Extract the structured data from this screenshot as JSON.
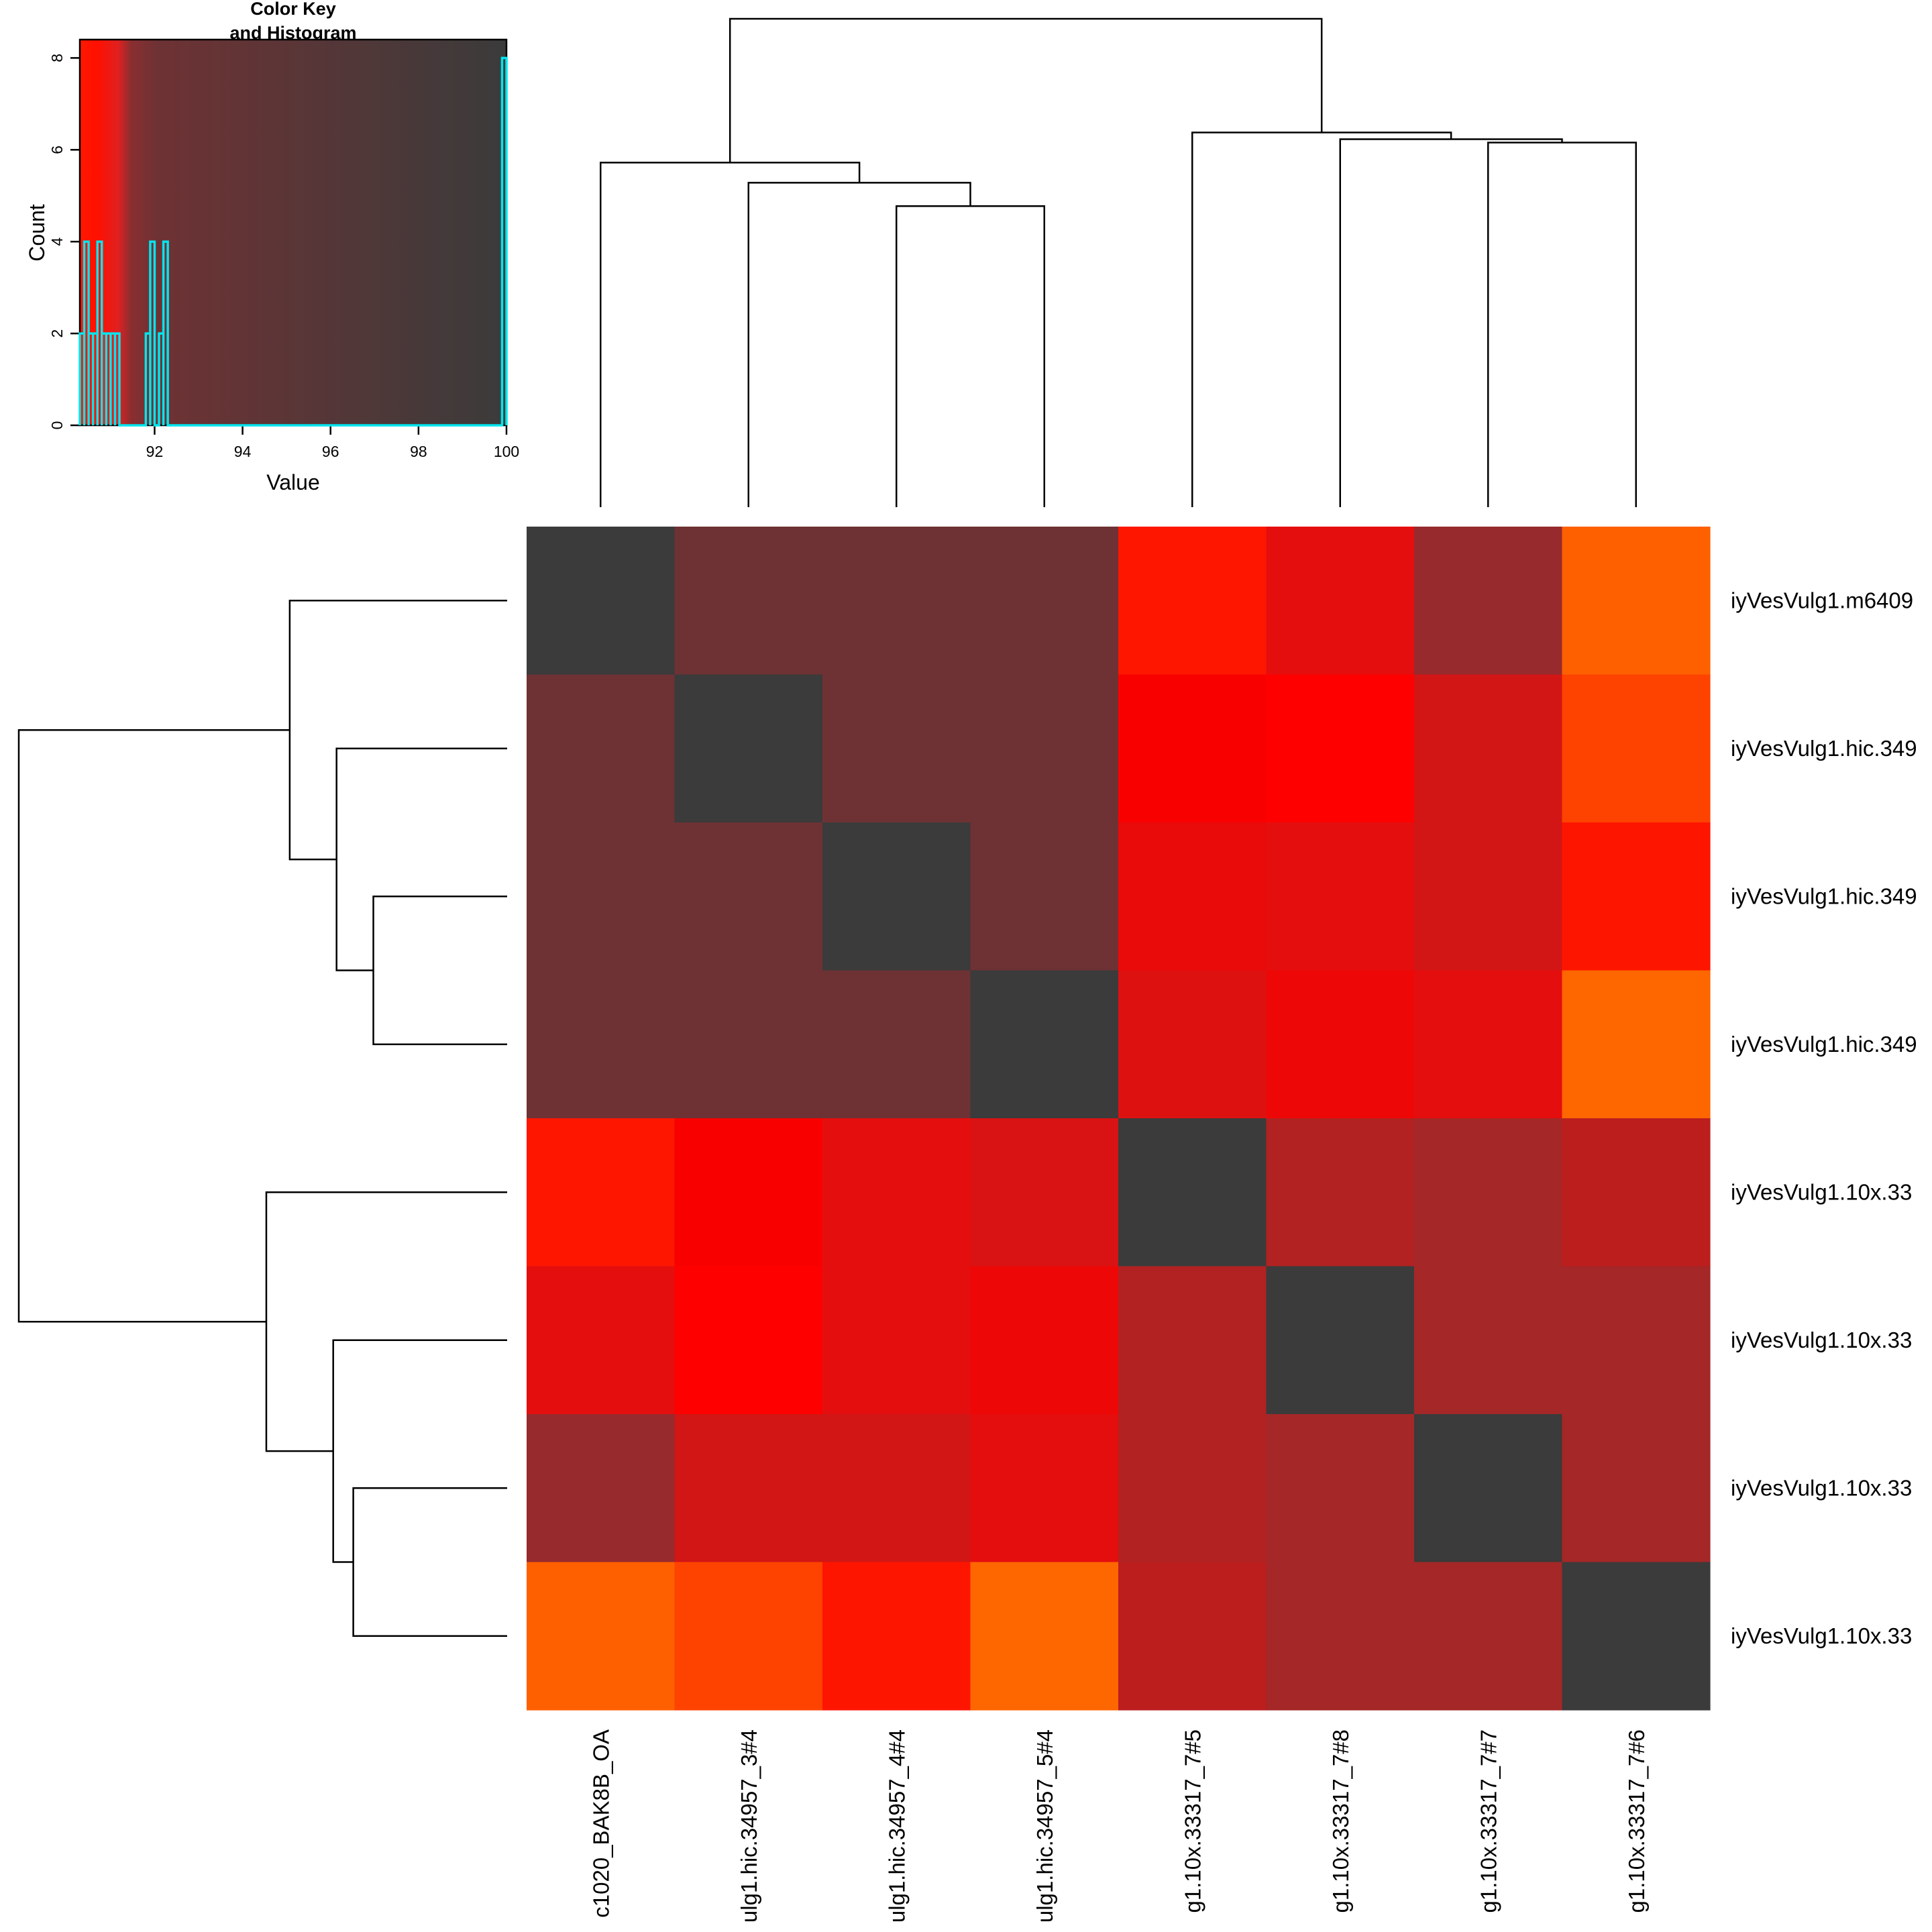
{
  "color_key": {
    "title_line1": "Color Key",
    "title_line2": "and Histogram",
    "xlabel": "Value",
    "ylabel": "Count",
    "x_ticks": [
      "92",
      "94",
      "96",
      "98",
      "100"
    ],
    "y_ticks": [
      "0",
      "2",
      "4",
      "6",
      "8"
    ],
    "xlim": [
      90.3,
      100.0
    ],
    "ylim": [
      0,
      8.4
    ],
    "colors": {
      "low": "#ff0000",
      "mid": "#6e3234",
      "high": "#3b3b3b",
      "histogram_line": "#00e5ee"
    }
  },
  "chart_data": {
    "type": "heatmap",
    "row_labels": [
      "iyVesVulg1.m6409",
      "iyVesVulg1.hic.349",
      "iyVesVulg1.hic.349",
      "iyVesVulg1.hic.349",
      "iyVesVulg1.10x.33",
      "iyVesVulg1.10x.33",
      "iyVesVulg1.10x.33",
      "iyVesVulg1.10x.33"
    ],
    "col_labels": [
      "c1020_BAK8B_OA",
      "ulg1.hic.34957_3#4",
      "ulg1.hic.34957_4#4",
      "ulg1.hic.34957_5#4",
      "g1.10x.33317_7#5",
      "g1.10x.33317_7#8",
      "g1.10x.33317_7#7",
      "g1.10x.33317_7#6"
    ],
    "cell_colors": [
      [
        "#3b3b3b",
        "#6e3234",
        "#6e3234",
        "#6e3234",
        "#fe1600",
        "#e50e0e",
        "#962a2d",
        "#fe6000"
      ],
      [
        "#6e3234",
        "#3b3b3b",
        "#6e3234",
        "#6e3234",
        "#f90000",
        "#fe0000",
        "#d21616",
        "#fe4300"
      ],
      [
        "#6e3234",
        "#6e3234",
        "#3b3b3b",
        "#6e3234",
        "#e90a0a",
        "#e50e0e",
        "#d21616",
        "#fe1500"
      ],
      [
        "#6e3234",
        "#6e3234",
        "#6e3234",
        "#3b3b3b",
        "#de1111",
        "#ee0707",
        "#e50e0e",
        "#fe6600"
      ],
      [
        "#fe1600",
        "#f90000",
        "#e50e0e",
        "#d91313",
        "#3b3b3b",
        "#b22222",
        "#a52727",
        "#bc1e1e"
      ],
      [
        "#e50e0e",
        "#fe0000",
        "#e50e0e",
        "#ee0707",
        "#b22222",
        "#3b3b3b",
        "#a52727",
        "#a52727"
      ],
      [
        "#962a2d",
        "#d21616",
        "#d21616",
        "#e50e0e",
        "#b22222",
        "#a52727",
        "#3b3b3b",
        "#a52727"
      ],
      [
        "#fe6000",
        "#fe4300",
        "#fe1500",
        "#fe6600",
        "#bc1e1e",
        "#a52727",
        "#a52727",
        "#3b3b3b"
      ]
    ],
    "histogram": {
      "comment_free": true,
      "x": [
        90.35,
        90.45,
        90.55,
        90.65,
        90.75,
        90.85,
        90.95,
        91.05,
        91.15,
        91.85,
        91.95,
        92.15,
        92.25,
        99.95
      ],
      "counts": [
        2,
        4,
        2,
        2,
        4,
        2,
        2,
        2,
        2,
        2,
        4,
        2,
        4,
        8
      ]
    },
    "row_dendrogram": {
      "merges": [
        {
          "a": 2,
          "b": 3,
          "height": 2.0
        },
        {
          "a": 6,
          "b": 7,
          "height": 2.3
        },
        {
          "a": 1,
          "b": "2-3",
          "height": 2.55
        },
        {
          "a": 5,
          "b": "6-7",
          "height": 2.6
        },
        {
          "a": 0,
          "b": "1-3",
          "height": 3.25
        },
        {
          "a": 4,
          "b": "5-7",
          "height": 3.6
        },
        {
          "a": "0-3",
          "b": "4-7",
          "height": 7.3
        }
      ]
    },
    "col_dendrogram": {
      "merges": [
        {
          "a": 2,
          "b": 3,
          "height": 4.5
        },
        {
          "a": 6,
          "b": 7,
          "height": 5.45
        },
        {
          "a": 1,
          "b": "2-3",
          "height": 4.85
        },
        {
          "a": 5,
          "b": "6-7",
          "height": 5.5
        },
        {
          "a": 0,
          "b": "1-3",
          "height": 5.15
        },
        {
          "a": 4,
          "b": "5-7",
          "height": 5.6
        },
        {
          "a": "0-3",
          "b": "4-7",
          "height": 7.3
        }
      ]
    }
  }
}
